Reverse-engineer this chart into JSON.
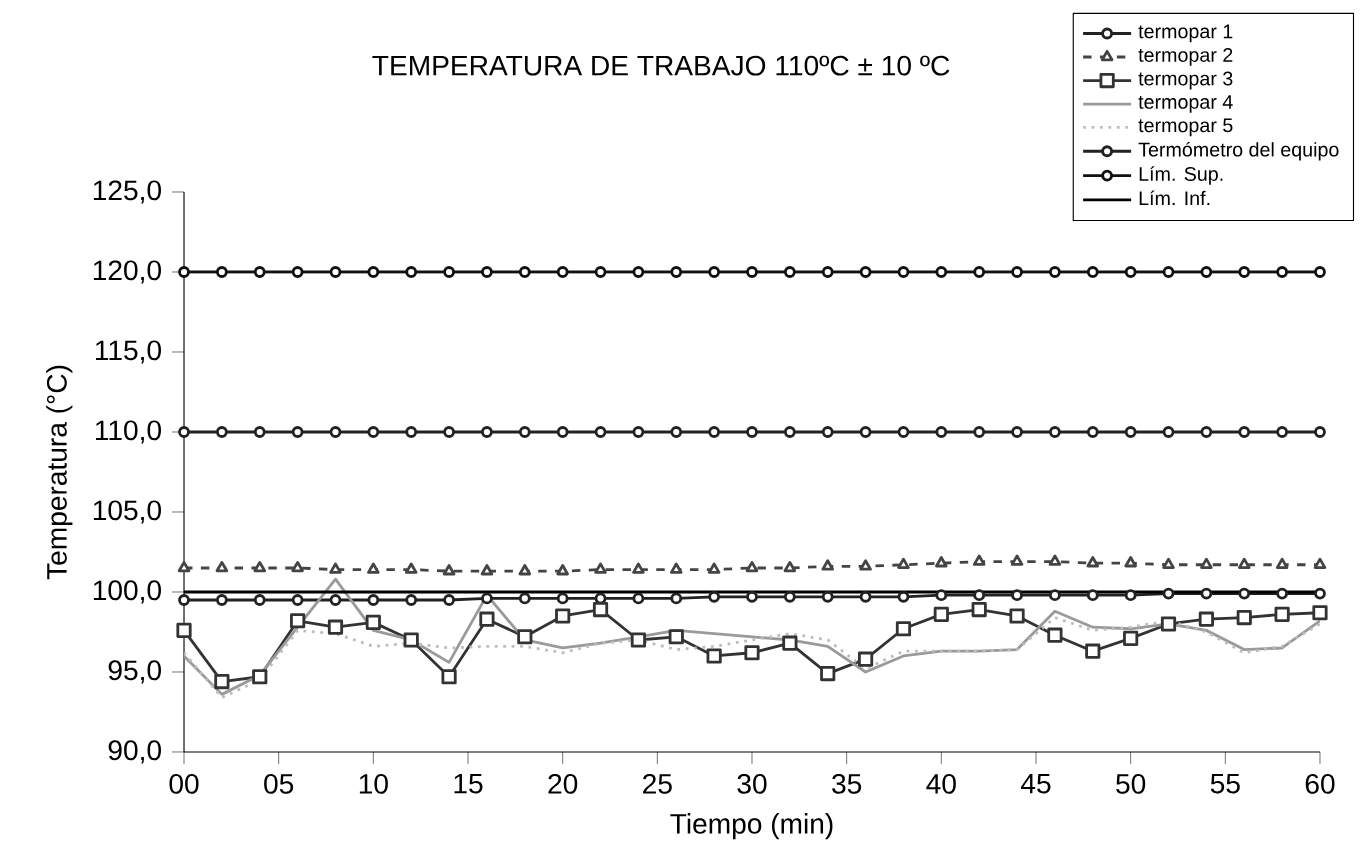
{
  "chart_data": {
    "type": "line",
    "title": "TEMPERATURA DE TRABAJO  110ºC ± 10 ºC",
    "xlabel": "Tiempo (min)",
    "ylabel": "Temperatura (°C)",
    "x": [
      0,
      2,
      4,
      6,
      8,
      10,
      12,
      14,
      16,
      18,
      20,
      22,
      24,
      26,
      28,
      30,
      32,
      34,
      36,
      38,
      40,
      42,
      44,
      46,
      48,
      50,
      52,
      54,
      56,
      58,
      60
    ],
    "xlim": [
      0,
      60
    ],
    "xticks": [
      {
        "value": 0,
        "label": "00"
      },
      {
        "value": 5,
        "label": "05"
      },
      10,
      15,
      20,
      25,
      30,
      35,
      40,
      45,
      50,
      55,
      60
    ],
    "ylim": [
      90,
      125
    ],
    "yticks": [
      {
        "value": 90,
        "label": "90,0"
      },
      {
        "value": 95,
        "label": "95,0"
      },
      {
        "value": 100,
        "label": "100,0"
      },
      {
        "value": 105,
        "label": "105,0"
      },
      {
        "value": 110,
        "label": "110,0"
      },
      {
        "value": 115,
        "label": "115,0"
      },
      {
        "value": 120,
        "label": "120,0"
      },
      {
        "value": 125,
        "label": "125,0"
      }
    ],
    "grid": false,
    "legend": "top right",
    "series": [
      {
        "name": "termopar 1",
        "color": "#222222",
        "marker": "circle",
        "line_style": "solid",
        "values": [
          99.5,
          99.5,
          99.5,
          99.5,
          99.5,
          99.5,
          99.5,
          99.5,
          99.6,
          99.6,
          99.6,
          99.6,
          99.6,
          99.6,
          99.7,
          99.7,
          99.7,
          99.7,
          99.7,
          99.7,
          99.8,
          99.8,
          99.8,
          99.8,
          99.8,
          99.8,
          99.9,
          99.9,
          99.9,
          99.9,
          99.9
        ]
      },
      {
        "name": "termopar 2",
        "color": "#444444",
        "marker": "triangle",
        "line_style": "dashed",
        "values": [
          101.5,
          101.5,
          101.5,
          101.5,
          101.4,
          101.4,
          101.4,
          101.3,
          101.3,
          101.3,
          101.3,
          101.4,
          101.4,
          101.4,
          101.4,
          101.5,
          101.5,
          101.6,
          101.6,
          101.7,
          101.8,
          101.9,
          101.9,
          101.9,
          101.8,
          101.8,
          101.7,
          101.7,
          101.7,
          101.7,
          101.7
        ]
      },
      {
        "name": "termopar 3",
        "color": "#333333",
        "marker": "square",
        "line_style": "solid",
        "values": [
          97.6,
          94.4,
          94.7,
          98.2,
          97.8,
          98.1,
          97.0,
          94.7,
          98.3,
          97.2,
          98.5,
          98.9,
          97.0,
          97.2,
          96.0,
          96.2,
          96.8,
          94.9,
          95.8,
          97.7,
          98.6,
          98.9,
          98.5,
          97.3,
          96.3,
          97.1,
          98.0,
          98.3,
          98.4,
          98.6,
          98.7
        ]
      },
      {
        "name": "termopar 4",
        "color": "#9a9a9a",
        "marker": "none",
        "line_style": "solid",
        "values": [
          96.0,
          93.6,
          94.8,
          97.8,
          100.8,
          97.6,
          97.0,
          95.6,
          99.8,
          97.0,
          96.5,
          96.8,
          97.2,
          97.6,
          97.4,
          97.2,
          97.0,
          96.6,
          95.0,
          96.0,
          96.3,
          96.3,
          96.4,
          98.8,
          97.8,
          97.7,
          98.0,
          97.6,
          96.4,
          96.5,
          98.2
        ]
      },
      {
        "name": "termopar 5",
        "color": "#bdbdbd",
        "marker": "none",
        "line_style": "dotted",
        "values": [
          96.2,
          93.4,
          94.5,
          97.6,
          97.4,
          96.6,
          96.8,
          96.5,
          96.6,
          96.6,
          96.2,
          96.8,
          97.0,
          96.4,
          96.6,
          97.0,
          97.4,
          97.0,
          95.2,
          96.3,
          96.3,
          96.3,
          96.4,
          98.4,
          97.6,
          97.8,
          98.2,
          97.5,
          96.2,
          96.6,
          98.0
        ]
      },
      {
        "name": "Termómetro del equipo",
        "color": "#222222",
        "marker": "circle",
        "line_style": "solid",
        "values": [
          110,
          110,
          110,
          110,
          110,
          110,
          110,
          110,
          110,
          110,
          110,
          110,
          110,
          110,
          110,
          110,
          110,
          110,
          110,
          110,
          110,
          110,
          110,
          110,
          110,
          110,
          110,
          110,
          110,
          110,
          110
        ]
      },
      {
        "name": "Lím. Sup.",
        "color": "#111111",
        "marker": "circle",
        "line_style": "solid",
        "values": [
          120,
          120,
          120,
          120,
          120,
          120,
          120,
          120,
          120,
          120,
          120,
          120,
          120,
          120,
          120,
          120,
          120,
          120,
          120,
          120,
          120,
          120,
          120,
          120,
          120,
          120,
          120,
          120,
          120,
          120,
          120
        ]
      },
      {
        "name": "Lím. Inf.",
        "color": "#000000",
        "marker": "none",
        "line_style": "solid",
        "values": [
          100,
          100,
          100,
          100,
          100,
          100,
          100,
          100,
          100,
          100,
          100,
          100,
          100,
          100,
          100,
          100,
          100,
          100,
          100,
          100,
          100,
          100,
          100,
          100,
          100,
          100,
          100,
          100,
          100,
          100,
          100
        ]
      }
    ]
  }
}
